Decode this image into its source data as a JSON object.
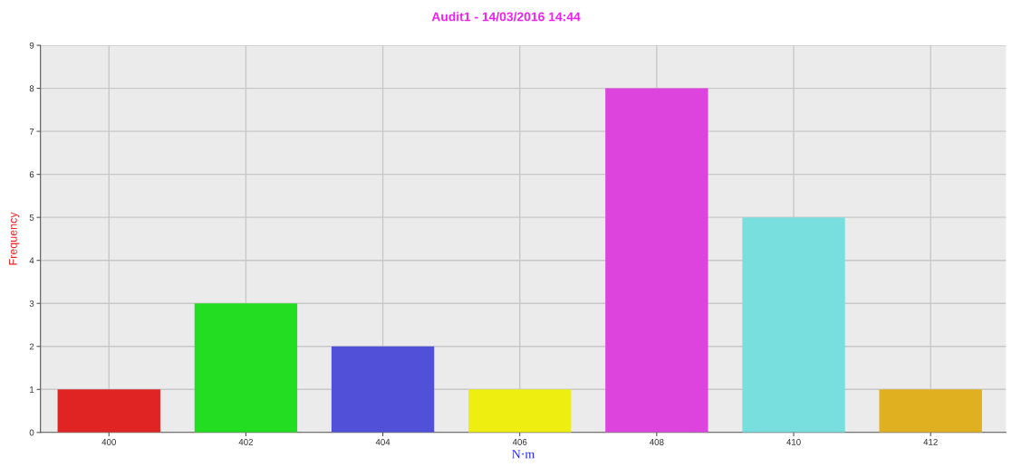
{
  "chart_data": {
    "type": "bar",
    "title": "Audit1 - 14/03/2016 14:44",
    "xlabel": "N·m",
    "ylabel": "Frequency",
    "categories": [
      "400",
      "402",
      "404",
      "406",
      "408",
      "410",
      "412"
    ],
    "values": [
      1,
      3,
      2,
      1,
      8,
      5,
      1
    ],
    "colors": [
      "#e02424",
      "#22dd22",
      "#5050d8",
      "#eeee10",
      "#dd44dd",
      "#78dede",
      "#e0b020"
    ],
    "ylim": [
      0,
      9
    ],
    "yticks": [
      0,
      1,
      2,
      3,
      4,
      5,
      6,
      7,
      8,
      9
    ],
    "grid": true
  }
}
